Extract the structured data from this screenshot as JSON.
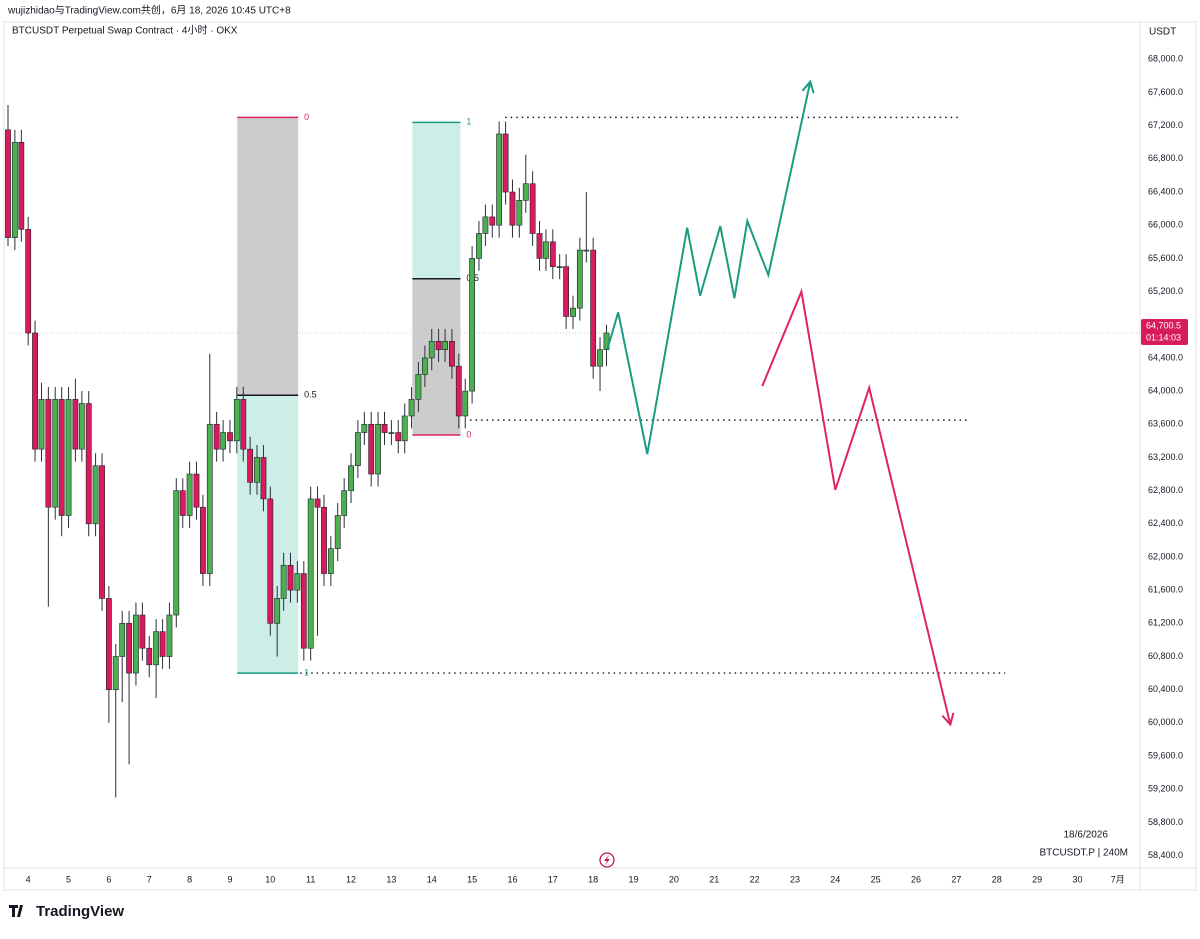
{
  "header": "wujizhidao与TradingView.com共创，6月 18, 2026 10:45 UTC+8",
  "footer": {
    "logo": "TradingView"
  },
  "chart_data": {
    "type": "candlestick",
    "title": "BTCUSDT Perpetual Swap Contract · 4小时 · OKX",
    "currency": "USDT",
    "date_note": "18/6/2026",
    "symbol_note": "BTCUSDT.P | 240M",
    "up_color": "#4caf50",
    "down_color": "#d81b5a",
    "xlim": [
      3.5,
      31.55
    ],
    "ylim": [
      58250,
      68450
    ],
    "xticks": [
      4,
      5,
      6,
      7,
      8,
      9,
      10,
      11,
      12,
      13,
      14,
      15,
      16,
      17,
      18,
      19,
      20,
      21,
      22,
      23,
      24,
      25,
      26,
      27,
      28,
      29,
      30,
      {
        "value": 31,
        "label": "7月"
      }
    ],
    "yticks": [
      {
        "value": 58400,
        "label": "58,400.0"
      },
      {
        "value": 58800,
        "label": "58,800.0"
      },
      {
        "value": 59200,
        "label": "59,200.0"
      },
      {
        "value": 59600,
        "label": "59,600.0"
      },
      {
        "value": 60000,
        "label": "60,000.0"
      },
      {
        "value": 60400,
        "label": "60,400.0"
      },
      {
        "value": 60800,
        "label": "60,800.0"
      },
      {
        "value": 61200,
        "label": "61,200.0"
      },
      {
        "value": 61600,
        "label": "61,600.0"
      },
      {
        "value": 62000,
        "label": "62,000.0"
      },
      {
        "value": 62400,
        "label": "62,400.0"
      },
      {
        "value": 62800,
        "label": "62,800.0"
      },
      {
        "value": 63200,
        "label": "63,200.0"
      },
      {
        "value": 63600,
        "label": "63,600.0"
      },
      {
        "value": 64000,
        "label": "64,000.0"
      },
      {
        "value": 64400,
        "label": "64,400.0"
      },
      {
        "value": 64800,
        "label": "64,800.0"
      },
      {
        "value": 65200,
        "label": "65,200.0"
      },
      {
        "value": 65600,
        "label": "65,600.0"
      },
      {
        "value": 66000,
        "label": "66,000.0"
      },
      {
        "value": 66400,
        "label": "66,400.0"
      },
      {
        "value": 66800,
        "label": "66,800.0"
      },
      {
        "value": 67200,
        "label": "67,200.0"
      },
      {
        "value": 67600,
        "label": "67,600.0"
      },
      {
        "value": 68000,
        "label": "68,000.0"
      }
    ],
    "x": [
      3.5,
      3.67,
      3.83,
      4,
      4.17,
      4.33,
      4.5,
      4.67,
      4.83,
      5,
      5.17,
      5.33,
      5.5,
      5.67,
      5.83,
      6,
      6.17,
      6.33,
      6.5,
      6.67,
      6.83,
      7,
      7.17,
      7.33,
      7.5,
      7.67,
      7.83,
      8,
      8.17,
      8.33,
      8.5,
      8.67,
      8.83,
      9,
      9.17,
      9.33,
      9.5,
      9.67,
      9.83,
      10,
      10.17,
      10.33,
      10.5,
      10.67,
      10.83,
      11,
      11.17,
      11.33,
      11.5,
      11.67,
      11.83,
      12,
      12.17,
      12.33,
      12.5,
      12.67,
      12.83,
      13,
      13.17,
      13.33,
      13.5,
      13.67,
      13.83,
      14,
      14.17,
      14.33,
      14.5,
      14.67,
      14.83,
      15,
      15.17,
      15.33,
      15.5,
      15.67,
      15.83,
      16,
      16.17,
      16.33,
      16.5,
      16.67,
      16.83,
      17,
      17.17,
      17.33,
      17.5,
      17.67,
      17.83,
      18,
      18.17,
      18.33
    ],
    "open": [
      67150,
      65850,
      67000,
      65950,
      64700,
      63300,
      63900,
      62600,
      63900,
      62500,
      63900,
      63300,
      63850,
      62400,
      63100,
      61500,
      60400,
      60800,
      61200,
      60600,
      61300,
      60900,
      60700,
      61100,
      60800,
      61300,
      62800,
      62500,
      63000,
      62600,
      61800,
      63600,
      63300,
      63500,
      63400,
      63900,
      63300,
      62900,
      63200,
      62700,
      61200,
      61500,
      61900,
      61600,
      61800,
      60900,
      62700,
      62600,
      61800,
      62100,
      62500,
      62800,
      63100,
      63500,
      63600,
      63000,
      63600,
      63500,
      63500,
      63400,
      63700,
      63900,
      64200,
      64400,
      64600,
      64500,
      64600,
      64300,
      63700,
      64000,
      65600,
      65900,
      66100,
      66000,
      67100,
      66400,
      66000,
      66300,
      66500,
      65900,
      65600,
      65800,
      65500,
      65500,
      64900,
      65000,
      65700,
      65700,
      64300,
      64500
    ],
    "high": [
      67450,
      67150,
      67150,
      66100,
      64850,
      64100,
      64050,
      64050,
      64050,
      64050,
      64150,
      64000,
      64000,
      63250,
      63250,
      61650,
      60950,
      61350,
      61350,
      61450,
      61450,
      61050,
      61250,
      61250,
      61450,
      62950,
      62950,
      63150,
      63150,
      62750,
      64450,
      63750,
      63650,
      63650,
      64050,
      64050,
      63450,
      63350,
      63350,
      62850,
      61650,
      62050,
      62050,
      61950,
      61950,
      62850,
      62850,
      62750,
      62250,
      62650,
      62950,
      63250,
      63650,
      63750,
      63750,
      63750,
      63750,
      63650,
      63650,
      63850,
      64050,
      64350,
      64550,
      64750,
      64750,
      64750,
      64750,
      64450,
      64150,
      65750,
      66050,
      66250,
      66250,
      67250,
      67250,
      66550,
      66450,
      66850,
      66650,
      66050,
      65950,
      65950,
      65650,
      65650,
      65150,
      65850,
      66400,
      65850,
      64650,
      64800
    ],
    "low": [
      65750,
      65700,
      65800,
      64550,
      63150,
      63150,
      61400,
      62450,
      62250,
      62350,
      63150,
      63150,
      62250,
      62250,
      61350,
      60000,
      59100,
      60250,
      59500,
      60450,
      60750,
      60550,
      60300,
      60650,
      60650,
      61150,
      62350,
      62350,
      62450,
      61650,
      61650,
      63150,
      63150,
      63250,
      63250,
      63150,
      62750,
      62750,
      62550,
      61050,
      60800,
      61350,
      61450,
      61450,
      60750,
      60750,
      61050,
      61650,
      61650,
      61950,
      62350,
      62650,
      62950,
      63350,
      62850,
      62850,
      63350,
      63350,
      63250,
      63250,
      63550,
      63750,
      64050,
      64250,
      64350,
      64350,
      64150,
      63550,
      63550,
      63850,
      65450,
      65750,
      65850,
      65850,
      66250,
      65850,
      65850,
      66150,
      65750,
      65450,
      65450,
      65350,
      65350,
      64750,
      64750,
      64850,
      65550,
      64150,
      64000,
      64300
    ],
    "close": [
      65850,
      67000,
      65950,
      64700,
      63300,
      63900,
      62600,
      63900,
      62500,
      63900,
      63300,
      63850,
      62400,
      63100,
      61500,
      60400,
      60800,
      61200,
      60600,
      61300,
      60900,
      60700,
      61100,
      60800,
      61300,
      62800,
      62500,
      63000,
      62600,
      61800,
      63600,
      63300,
      63500,
      63400,
      63900,
      63300,
      62900,
      63200,
      62700,
      61200,
      61500,
      61900,
      61600,
      61800,
      60900,
      62700,
      62600,
      61800,
      62100,
      62500,
      62800,
      63100,
      63500,
      63600,
      63000,
      63600,
      63500,
      63500,
      63400,
      63700,
      63900,
      64200,
      64400,
      64600,
      64500,
      64600,
      64300,
      63700,
      64000,
      65600,
      65900,
      66100,
      66000,
      67100,
      66400,
      66000,
      66300,
      66500,
      65900,
      65600,
      65800,
      65500,
      65500,
      64900,
      65000,
      65700,
      65700,
      64300,
      64500,
      64700.5
    ],
    "last_price": {
      "value": 64700.5,
      "label": "64,700.5"
    },
    "countdown": "01:14:03",
    "fib_ranges": [
      {
        "x": [
          9.18,
          10.69
        ],
        "price0": 67300,
        "price1": 60600,
        "levels": [
          0,
          0.5,
          1
        ],
        "color0": "#e0245e",
        "color1": "#1a9c82"
      },
      {
        "x": [
          13.52,
          14.71
        ],
        "price0": 63470,
        "price1": 67240,
        "levels": [
          0,
          0.5,
          1
        ],
        "color0": "#e0245e",
        "color1": "#1a9c82"
      }
    ],
    "level_lines": [
      {
        "price": 67300,
        "x": [
          15.82,
          27.1
        ]
      },
      {
        "price": 63650,
        "x": [
          14.95,
          27.35
        ]
      },
      {
        "price": 60600,
        "x": [
          10.74,
          28.21
        ]
      }
    ],
    "projections": [
      {
        "color": "#1a9c82",
        "x": [
          18.35,
          18.62,
          19.34,
          20.33,
          20.65,
          21.15,
          21.5,
          21.82,
          22.34,
          23.38
        ],
        "prices": [
          64500,
          64950,
          63240,
          65970,
          65150,
          65990,
          65120,
          66050,
          65400,
          67730
        ]
      },
      {
        "color": "#e0245e",
        "x": [
          22.19,
          23.16,
          24.0,
          24.84,
          26.85
        ],
        "prices": [
          64060,
          65200,
          62810,
          64040,
          59980
        ]
      }
    ]
  }
}
